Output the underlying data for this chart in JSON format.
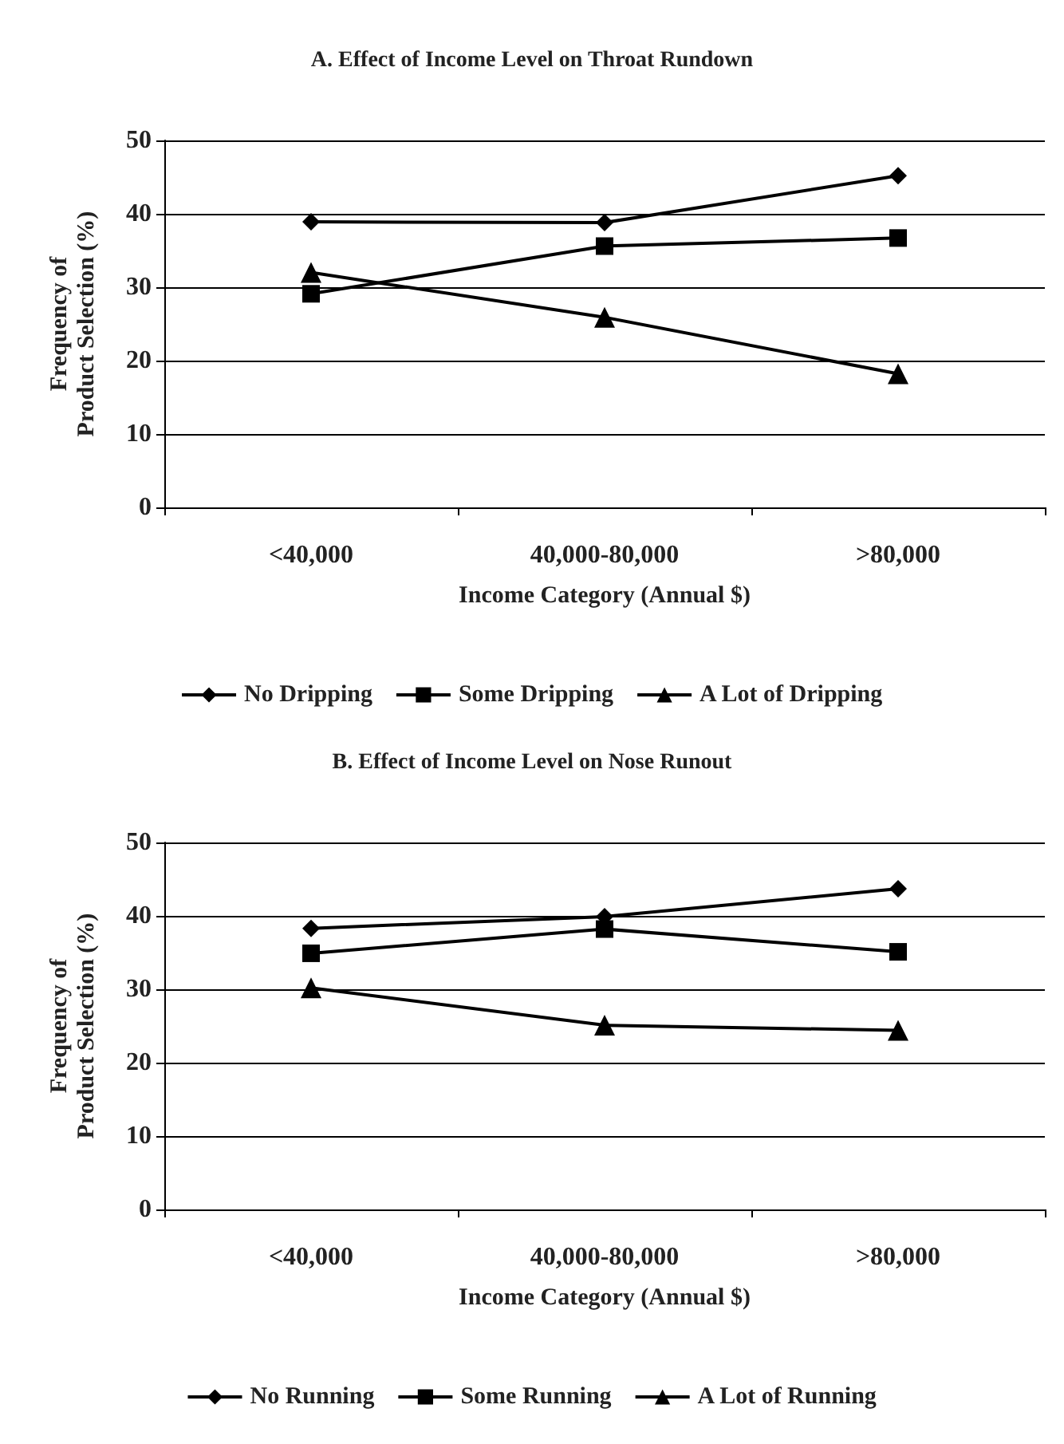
{
  "chart_data": [
    {
      "type": "line",
      "title": "A. Effect of Income Level on Throat Rundown",
      "xlabel": "Income Category (Annual $)",
      "ylabel": "Frequency of\nProduct Selection (%)",
      "categories": [
        "<40,000",
        "40,000-80,000",
        ">80,000"
      ],
      "ylim": [
        0,
        50
      ],
      "yticks": [
        0,
        10,
        20,
        30,
        40,
        50
      ],
      "grid": "y",
      "legend": "bottom",
      "series": [
        {
          "name": "No Dripping",
          "color": "#000000",
          "marker": "diamond",
          "values": [
            38.9,
            38.8,
            45.2
          ]
        },
        {
          "name": "Some Dripping",
          "color": "#000000",
          "marker": "square",
          "values": [
            29.1,
            35.6,
            36.7
          ]
        },
        {
          "name": "A Lot of Dripping",
          "color": "#000000",
          "marker": "triangle",
          "values": [
            32,
            25.9,
            18.2
          ]
        }
      ]
    },
    {
      "type": "line",
      "title": "B. Effect of Income Level on Nose Runout",
      "xlabel": "Income Category (Annual $)",
      "ylabel": "Frequency of\nProduct Selection (%)",
      "categories": [
        "<40,000",
        "40,000-80,000",
        ">80,000"
      ],
      "ylim": [
        0,
        50
      ],
      "yticks": [
        0,
        10,
        20,
        30,
        40,
        50
      ],
      "grid": "y",
      "legend": "bottom",
      "series": [
        {
          "name": "No Running",
          "color": "#000000",
          "marker": "diamond",
          "values": [
            38.3,
            39.9,
            43.7
          ]
        },
        {
          "name": "Some Running",
          "color": "#000000",
          "marker": "square",
          "values": [
            34.9,
            38.2,
            35.1
          ]
        },
        {
          "name": "A Lot of Running",
          "color": "#000000",
          "marker": "triangle",
          "values": [
            30.2,
            25.1,
            24.4
          ]
        }
      ]
    }
  ]
}
